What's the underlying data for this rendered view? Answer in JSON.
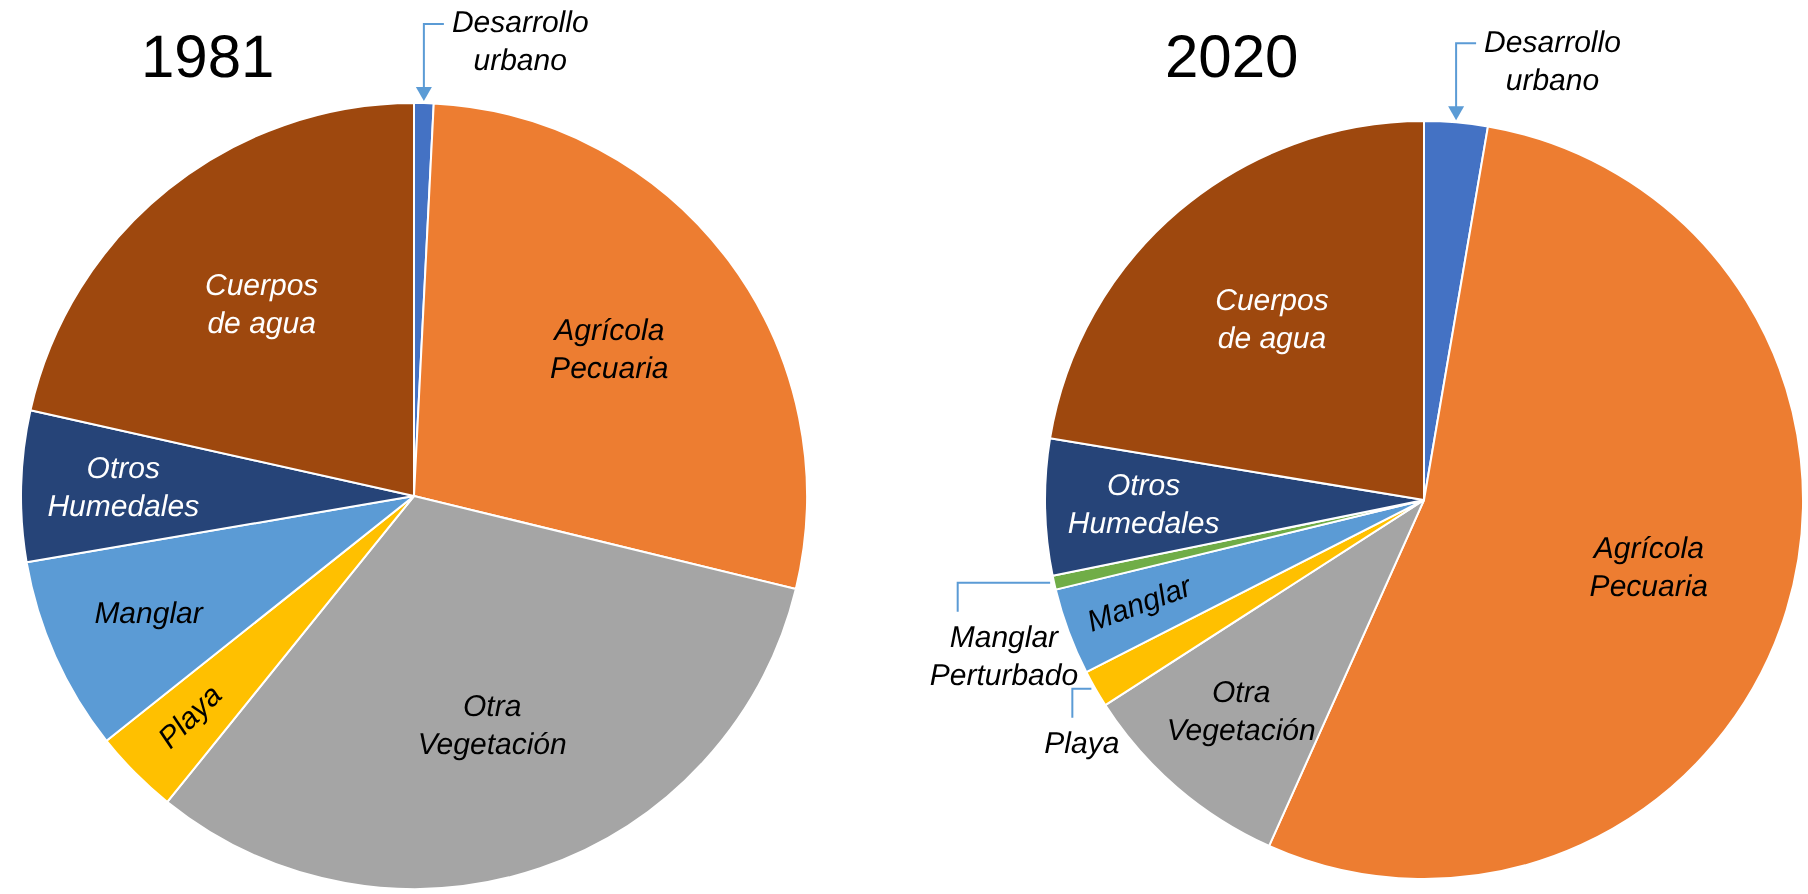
{
  "chart_data": [
    {
      "type": "pie",
      "title": "1981",
      "categories": [
        "Desarrollo urbano",
        "Agrícola Pecuaria",
        "Otra Vegetación",
        "Playa",
        "Manglar",
        "Otros Humedales",
        "Cuerpos de agua"
      ],
      "values": [
        0.8,
        28,
        32,
        3.5,
        8,
        6.2,
        21.5
      ],
      "colors": [
        "#4472c4",
        "#ed7d31",
        "#a5a5a5",
        "#ffc000",
        "#5b9bd5",
        "#264478",
        "#9e480e"
      ]
    },
    {
      "type": "pie",
      "title": "2020",
      "categories": [
        "Desarrollo urbano",
        "Agrícola Pecuaria",
        "Otra Vegetación",
        "Playa",
        "Manglar",
        "Manglar Perturbado",
        "Otros Humedales",
        "Cuerpos de agua"
      ],
      "values": [
        2.7,
        54,
        9.2,
        1.6,
        3.7,
        0.6,
        5.8,
        22.4
      ],
      "colors": [
        "#4472c4",
        "#ed7d31",
        "#a5a5a5",
        "#ffc000",
        "#5b9bd5",
        "#70ad47",
        "#264478",
        "#9e480e"
      ]
    }
  ]
}
